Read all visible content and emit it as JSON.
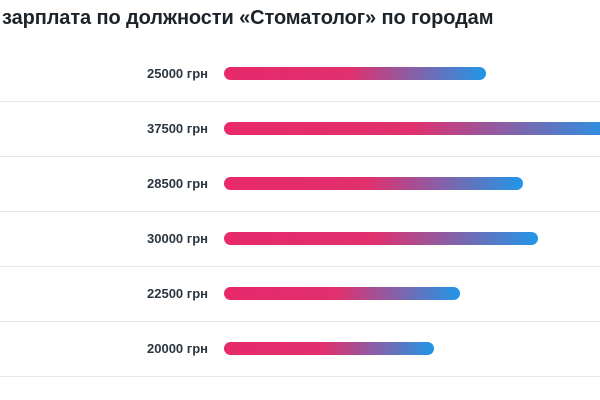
{
  "title": "зарплата по должности «Стоматолог» по городам",
  "chart_data": {
    "type": "bar",
    "orientation": "horizontal",
    "title": "зарплата по должности «Стоматолог» по городам",
    "unit": "грн",
    "values": [
      25000,
      37500,
      28500,
      30000,
      22500,
      20000
    ],
    "labels": [
      "25000 грн",
      "37500 грн",
      "28500 грн",
      "30000 грн",
      "22500 грн",
      "20000 грн"
    ],
    "xlim": [
      0,
      37500
    ],
    "grid": false,
    "colors": {
      "bar_start": "#e8296b",
      "bar_mid": "#e0306e",
      "bar_end": "#2196e8",
      "text": "#2c3640",
      "divider": "#e6e8eb"
    }
  }
}
